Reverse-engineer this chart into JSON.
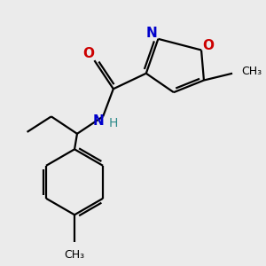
{
  "bg_color": "#ebebeb",
  "atom_colors": {
    "C": "#000000",
    "N": "#0000cc",
    "O": "#cc0000",
    "H": "#2e8b8b"
  },
  "line_color": "#000000",
  "line_width": 1.6,
  "figsize": [
    3.0,
    3.0
  ],
  "dpi": 100
}
